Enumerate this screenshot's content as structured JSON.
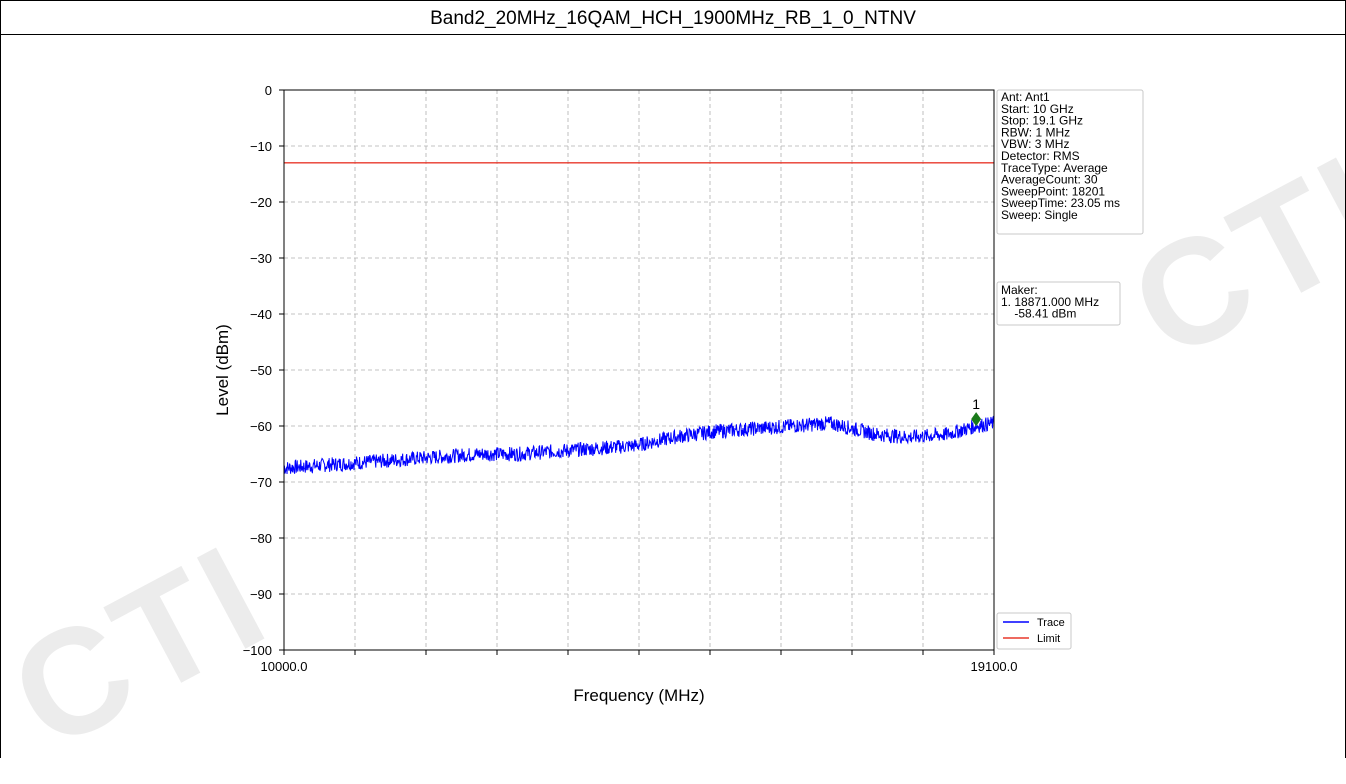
{
  "page": {
    "title": "Band2_20MHz_16QAM_HCH_1900MHz_RB_1_0_NTNV"
  },
  "colors": {
    "trace": "#0000ff",
    "limit": "#e8382b",
    "marker": "#1a7a1a",
    "grid": "#b0b0b0"
  },
  "chart_data": {
    "type": "line",
    "xlabel": "Frequency (MHz)",
    "ylabel": "Level (dBm)",
    "xlim": [
      10000.0,
      19100.0
    ],
    "ylim": [
      -100,
      0
    ],
    "x_tick_labels": [
      "10000.0",
      "19100.0"
    ],
    "x_gridlines": 10,
    "y_ticks": [
      0,
      -10,
      -20,
      -30,
      -40,
      -50,
      -60,
      -70,
      -80,
      -90,
      -100
    ],
    "y_tick_labels": [
      "0",
      "−10",
      "−20",
      "−30",
      "−40",
      "−50",
      "−60",
      "−70",
      "−80",
      "−90",
      "−100"
    ],
    "grid": true,
    "series": [
      {
        "name": "Trace",
        "x": [
          10000,
          10500,
          11000,
          11500,
          12000,
          12500,
          13000,
          13500,
          14000,
          14500,
          15000,
          15500,
          16000,
          16500,
          17000,
          17300,
          17600,
          18000,
          18500,
          18871,
          19100
        ],
        "y": [
          -67.5,
          -67,
          -66.5,
          -66,
          -65.5,
          -65,
          -65,
          -64.5,
          -64,
          -63.5,
          -62,
          -61,
          -60.5,
          -60,
          -59.5,
          -60.5,
          -61.5,
          -62,
          -61.5,
          -60,
          -59.5
        ]
      },
      {
        "name": "Limit",
        "x": [
          10000,
          19100
        ],
        "y": [
          -13,
          -13
        ]
      }
    ],
    "legend": {
      "placement": "bottom-right",
      "entries": [
        "Trace",
        "Limit"
      ]
    },
    "marker": {
      "label": "1",
      "x": 18871.0,
      "y": -58.41
    },
    "info_box": {
      "lines": [
        "Ant: Ant1",
        "Start: 10 GHz",
        "Stop: 19.1 GHz",
        "RBW: 1 MHz",
        "VBW: 3 MHz",
        "Detector: RMS",
        "TraceType: Average",
        "AverageCount: 30",
        "SweepPoint: 18201",
        "SweepTime: 23.05 ms",
        "Sweep: Single"
      ]
    },
    "marker_box": {
      "lines": [
        "Maker:",
        "1. 18871.000 MHz",
        "    -58.41 dBm"
      ]
    }
  }
}
